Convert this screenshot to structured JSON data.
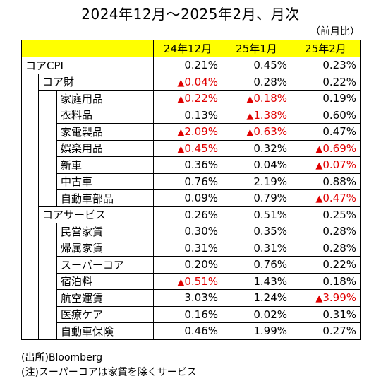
{
  "title": "2024年12月～2025年2月、月次",
  "unit": "（前月比）",
  "columns": [
    "24年12月",
    "25年1月",
    "25年2月"
  ],
  "rows": [
    {
      "label": "コアCPI",
      "level": 0,
      "values": [
        "0.21%",
        "0.45%",
        "0.23%"
      ],
      "neg": [
        false,
        false,
        false
      ]
    },
    {
      "label": "コア財",
      "level": 1,
      "values": [
        "0.04%",
        "0.28%",
        "0.22%"
      ],
      "neg": [
        true,
        false,
        false
      ]
    },
    {
      "label": "家庭用品",
      "level": 2,
      "values": [
        "0.22%",
        "0.18%",
        "0.19%"
      ],
      "neg": [
        true,
        true,
        false
      ]
    },
    {
      "label": "衣料品",
      "level": 2,
      "values": [
        "0.13%",
        "1.38%",
        "0.60%"
      ],
      "neg": [
        false,
        true,
        false
      ]
    },
    {
      "label": "家電製品",
      "level": 2,
      "values": [
        "2.09%",
        "0.63%",
        "0.47%"
      ],
      "neg": [
        true,
        true,
        false
      ]
    },
    {
      "label": "娯楽用品",
      "level": 2,
      "values": [
        "0.45%",
        "0.32%",
        "0.69%"
      ],
      "neg": [
        true,
        false,
        true
      ]
    },
    {
      "label": "新車",
      "level": 2,
      "values": [
        "0.36%",
        "0.04%",
        "0.07%"
      ],
      "neg": [
        false,
        false,
        true
      ]
    },
    {
      "label": "中古車",
      "level": 2,
      "values": [
        "0.76%",
        "2.19%",
        "0.88%"
      ],
      "neg": [
        false,
        false,
        false
      ]
    },
    {
      "label": "自動車部品",
      "level": 2,
      "values": [
        "0.09%",
        "0.79%",
        "0.47%"
      ],
      "neg": [
        false,
        false,
        true
      ]
    },
    {
      "label": "コアサービス",
      "level": 1,
      "values": [
        "0.26%",
        "0.51%",
        "0.25%"
      ],
      "neg": [
        false,
        false,
        false
      ]
    },
    {
      "label": "民営家賃",
      "level": 2,
      "values": [
        "0.30%",
        "0.35%",
        "0.28%"
      ],
      "neg": [
        false,
        false,
        false
      ]
    },
    {
      "label": "帰属家賃",
      "level": 2,
      "values": [
        "0.31%",
        "0.31%",
        "0.28%"
      ],
      "neg": [
        false,
        false,
        false
      ]
    },
    {
      "label": "スーパーコア",
      "level": 2,
      "values": [
        "0.20%",
        "0.76%",
        "0.22%"
      ],
      "neg": [
        false,
        false,
        false
      ]
    },
    {
      "label": "宿泊料",
      "level": 2,
      "values": [
        "0.51%",
        "1.43%",
        "0.18%"
      ],
      "neg": [
        true,
        false,
        false
      ]
    },
    {
      "label": "航空運賃",
      "level": 2,
      "values": [
        "3.03%",
        "1.24%",
        "3.99%"
      ],
      "neg": [
        false,
        false,
        true
      ]
    },
    {
      "label": "医療ケア",
      "level": 2,
      "values": [
        "0.16%",
        "0.02%",
        "0.31%"
      ],
      "neg": [
        false,
        false,
        false
      ]
    },
    {
      "label": "自動車保険",
      "level": 2,
      "values": [
        "0.46%",
        "1.99%",
        "0.27%"
      ],
      "neg": [
        false,
        false,
        false
      ]
    }
  ],
  "negative_marker": "▲",
  "notes": [
    "(出所)Bloomberg",
    "(注)スーパーコアは家賃を除くサービス"
  ],
  "colors": {
    "header_bg": "#ffff00",
    "negative": "#e00000"
  }
}
